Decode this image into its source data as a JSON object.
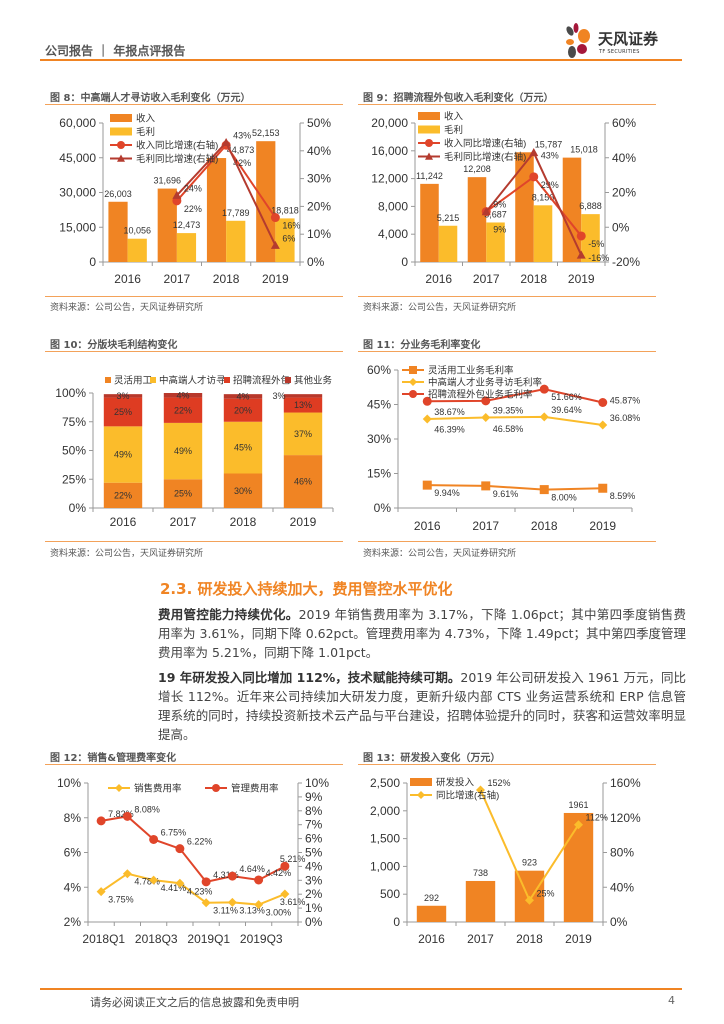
{
  "header": {
    "section": "公司报告 ｜ 年报点评报告",
    "logo_cn": "天风证券",
    "logo_en": "TF SECURITIES"
  },
  "section_title": "2.3. 研发投入持续加大，费用管控水平优化",
  "paragraphs": [
    {
      "lead": "费用管控能力持续优化。",
      "body": "2019 年销售费用率为 3.17%，下降 1.06pct；其中第四季度销售费用率为 3.61%，同期下降 0.62pct。管理费用率为 4.73%，下降 1.49pct；其中第四季度管理费用率为 5.21%，同期下降 1.01pct。"
    },
    {
      "lead": "19 年研发投入同比增加 112%，技术赋能持续可期。",
      "body": "2019 年公司研发投入 1961 万元，同比增长 112%。近年来公司持续加大研发力度，更新升级内部 CTS 业务运营系统和 ERP 信息管理系统的同时，持续投资新技术云产品与平台建设，招聘体验提升的同时，获客和运营效率明显提高。"
    }
  ],
  "footer": {
    "disclaimer": "请务必阅读正文之后的信息披露和免责申明",
    "page": "4"
  },
  "colors": {
    "accent": "#F08423",
    "orange": "#F08423",
    "yellow": "#FBBC2B",
    "red": "#E0452A",
    "darkred": "#B43B2F"
  },
  "chart_data": [
    {
      "type": "bar",
      "title": "图 8：中高端人才寻访收入毛利变化（万元）",
      "source": "资料来源：公司公告，天风证券研究所",
      "categories": [
        "2016",
        "2017",
        "2018",
        "2019"
      ],
      "left_axis": {
        "min": 0,
        "max": 60000,
        "ticks": [
          0,
          15000,
          30000,
          45000,
          60000
        ],
        "tick_labels": [
          "0",
          "15,000",
          "30,000",
          "45,000",
          "60,000"
        ]
      },
      "right_axis": {
        "min": 0,
        "max": 0.5,
        "ticks": [
          0,
          0.1,
          0.2,
          0.3,
          0.4,
          0.5
        ],
        "tick_labels": [
          "0%",
          "10%",
          "20%",
          "30%",
          "40%",
          "50%"
        ]
      },
      "series": [
        {
          "name": "收入",
          "kind": "bar",
          "axis": "left",
          "color": "#F08423",
          "values": [
            26003,
            31696,
            44873,
            52153
          ],
          "labels": [
            "26,003",
            "31,696",
            "44,873",
            "52,153"
          ]
        },
        {
          "name": "毛利",
          "kind": "bar",
          "axis": "left",
          "color": "#FBBC2B",
          "values": [
            10056,
            12473,
            17789,
            18818
          ],
          "labels": [
            "10,056",
            "12,473",
            "17,789",
            "18,818"
          ]
        },
        {
          "name": "收入同比增速(右轴)",
          "kind": "line",
          "marker": "circle",
          "axis": "right",
          "color": "#E0452A",
          "values": [
            null,
            0.22,
            0.42,
            0.16
          ],
          "labels": [
            null,
            "22%",
            "42%",
            "16%"
          ]
        },
        {
          "name": "毛利同比增速(右轴)",
          "kind": "line",
          "marker": "triangle",
          "axis": "right",
          "color": "#B43B2F",
          "values": [
            null,
            0.24,
            0.43,
            0.06
          ],
          "labels": [
            null,
            "24%",
            "43%",
            "6%"
          ]
        }
      ]
    },
    {
      "type": "bar",
      "title": "图 9：招聘流程外包收入毛利变化（万元）",
      "source": "资料来源：公司公告，天风证券研究所",
      "categories": [
        "2016",
        "2017",
        "2018",
        "2019"
      ],
      "left_axis": {
        "min": 0,
        "max": 20000,
        "ticks": [
          0,
          4000,
          8000,
          12000,
          16000,
          20000
        ],
        "tick_labels": [
          "0",
          "4,000",
          "8,000",
          "12,000",
          "16,000",
          "20,000"
        ]
      },
      "right_axis": {
        "min": -0.2,
        "max": 0.6,
        "ticks": [
          -0.2,
          0,
          0.2,
          0.4,
          0.6
        ],
        "tick_labels": [
          "-20%",
          "0%",
          "20%",
          "40%",
          "60%"
        ]
      },
      "series": [
        {
          "name": "收入",
          "kind": "bar",
          "axis": "left",
          "color": "#F08423",
          "values": [
            11242,
            12208,
            15787,
            15018
          ],
          "labels": [
            "11,242",
            "12,208",
            "15,787",
            "15,018"
          ]
        },
        {
          "name": "毛利",
          "kind": "bar",
          "axis": "left",
          "color": "#FBBC2B",
          "values": [
            5215,
            5687,
            8156,
            6888
          ],
          "labels": [
            "5,215",
            "5,687",
            "8,156",
            "6,888"
          ]
        },
        {
          "name": "收入同比增速(右轴)",
          "kind": "line",
          "marker": "circle",
          "axis": "right",
          "color": "#E0452A",
          "values": [
            null,
            0.09,
            0.29,
            -0.05
          ],
          "labels": [
            null,
            "9%",
            "29%",
            "-5%"
          ]
        },
        {
          "name": "毛利同比增速(右轴)",
          "kind": "line",
          "marker": "triangle",
          "axis": "right",
          "color": "#B43B2F",
          "values": [
            null,
            0.09,
            0.43,
            -0.16
          ],
          "labels": [
            null,
            "9%",
            "43%",
            "-16%"
          ]
        }
      ]
    },
    {
      "type": "bar",
      "stacked": true,
      "title": "图 10：分版块毛利结构变化",
      "source": "资料来源：公司公告，天风证券研究所",
      "categories": [
        "2016",
        "2017",
        "2018",
        "2019"
      ],
      "left_axis": {
        "min": 0,
        "max": 100,
        "ticks": [
          0,
          25,
          50,
          75,
          100
        ],
        "tick_labels": [
          "0%",
          "25%",
          "50%",
          "75%",
          "100%"
        ]
      },
      "series": [
        {
          "name": "灵活用工",
          "kind": "bar",
          "axis": "left",
          "color": "#F08423",
          "values": [
            22,
            25,
            30,
            46
          ],
          "labels": [
            "22%",
            "25%",
            "30%",
            "46%"
          ]
        },
        {
          "name": "中高端人才访寻",
          "kind": "bar",
          "axis": "left",
          "color": "#FBBC2B",
          "values": [
            49,
            49,
            45,
            37
          ],
          "labels": [
            "49%",
            "49%",
            "45%",
            "37%"
          ]
        },
        {
          "name": "招聘流程外包",
          "kind": "bar",
          "axis": "left",
          "color": "#DE3C22",
          "values": [
            25,
            22,
            20,
            13
          ],
          "labels": [
            "25%",
            "22%",
            "20%",
            "13%"
          ]
        },
        {
          "name": "其他业务",
          "kind": "bar",
          "axis": "left",
          "color": "#B8382B",
          "values": [
            3,
            4,
            4,
            3
          ],
          "labels": [
            "3%",
            "4%",
            "4%",
            "3%"
          ]
        }
      ]
    },
    {
      "type": "line",
      "title": "图 11：分业务毛利率变化",
      "source": "资料来源：公司公告，天风证券研究所",
      "categories": [
        "2016",
        "2017",
        "2018",
        "2019"
      ],
      "left_axis": {
        "min": 0,
        "max": 60,
        "ticks": [
          0,
          15,
          30,
          45,
          60
        ],
        "tick_labels": [
          "0%",
          "15%",
          "30%",
          "45%",
          "60%"
        ]
      },
      "series": [
        {
          "name": "灵活用工业务毛利率",
          "kind": "line",
          "marker": "square",
          "axis": "left",
          "color": "#F08423",
          "values": [
            9.94,
            9.61,
            8.0,
            8.59
          ],
          "labels": [
            "9.94%",
            "9.61%",
            "8.00%",
            "8.59%"
          ]
        },
        {
          "name": "中高端人才业务寻访毛利率",
          "kind": "line",
          "marker": "diamond",
          "axis": "left",
          "color": "#FBBC2B",
          "values": [
            38.67,
            39.35,
            39.64,
            36.08
          ],
          "labels": [
            "38.67%",
            "39.35%",
            "39.64%",
            "36.08%"
          ]
        },
        {
          "name": "招聘流程外包业务毛利率",
          "kind": "line",
          "marker": "circle",
          "axis": "left",
          "color": "#E0452A",
          "values": [
            46.39,
            46.58,
            51.66,
            45.87
          ],
          "labels": [
            "46.39%",
            "46.58%",
            "51.66%",
            "45.87%"
          ]
        }
      ]
    },
    {
      "type": "line",
      "title": "图 12：销售&管理费率变化",
      "source": "",
      "categories": [
        "2018Q1",
        "",
        "2018Q3",
        "",
        "2019Q1",
        "",
        "2019Q3",
        ""
      ],
      "left_axis": {
        "min": 2,
        "max": 10,
        "ticks": [
          2,
          4,
          6,
          8,
          10
        ],
        "tick_labels": [
          "2%",
          "4%",
          "6%",
          "8%",
          "10%"
        ]
      },
      "right_axis": {
        "min": 0,
        "max": 10,
        "ticks": [
          0,
          1,
          2,
          3,
          4,
          5,
          6,
          7,
          8,
          9,
          10
        ],
        "tick_labels": [
          "0%",
          "1%",
          "2%",
          "3%",
          "4%",
          "5%",
          "6%",
          "7%",
          "8%",
          "9%",
          "10%"
        ]
      },
      "series": [
        {
          "name": "销售费用率",
          "kind": "line",
          "marker": "diamond",
          "axis": "left",
          "color": "#FBBC2B",
          "values": [
            3.75,
            4.78,
            4.41,
            4.23,
            3.11,
            3.13,
            3.0,
            3.61
          ],
          "labels": [
            "3.75%",
            "4.78%",
            "4.41%",
            "4.23%",
            "3.11%",
            "3.13%",
            "3.00%",
            "3.61%"
          ]
        },
        {
          "name": "管理费用率",
          "kind": "line",
          "marker": "circle",
          "axis": "left",
          "color": "#E0452A",
          "values": [
            7.82,
            8.08,
            6.75,
            6.22,
            4.31,
            4.64,
            4.42,
            5.21
          ],
          "labels": [
            "7.82%",
            "8.08%",
            "6.75%",
            "6.22%",
            "4.31%",
            "4.64%",
            "4.42%",
            "5.21%"
          ]
        }
      ]
    },
    {
      "type": "bar",
      "title": "图 13：研发投入变化（万元）",
      "source": "",
      "categories": [
        "2016",
        "2017",
        "2018",
        "2019"
      ],
      "left_axis": {
        "min": 0,
        "max": 2500,
        "ticks": [
          0,
          500,
          1000,
          1500,
          2000,
          2500
        ],
        "tick_labels": [
          "0",
          "500",
          "1,000",
          "1,500",
          "2,000",
          "2,500"
        ]
      },
      "right_axis": {
        "min": 0,
        "max": 1.6,
        "ticks": [
          0,
          0.4,
          0.8,
          1.2,
          1.6
        ],
        "tick_labels": [
          "0%",
          "40%",
          "80%",
          "120%",
          "160%"
        ]
      },
      "series": [
        {
          "name": "研发投入",
          "kind": "bar",
          "axis": "left",
          "color": "#F08423",
          "values": [
            292,
            738,
            923,
            1961
          ],
          "labels": [
            "292",
            "738",
            "923",
            "1961"
          ]
        },
        {
          "name": "同比增速(右轴)",
          "kind": "line",
          "marker": "diamond",
          "axis": "right",
          "color": "#FBBC2B",
          "values": [
            null,
            1.52,
            0.25,
            1.12
          ],
          "labels": [
            null,
            "152%",
            "25%",
            "112%"
          ]
        }
      ]
    }
  ]
}
